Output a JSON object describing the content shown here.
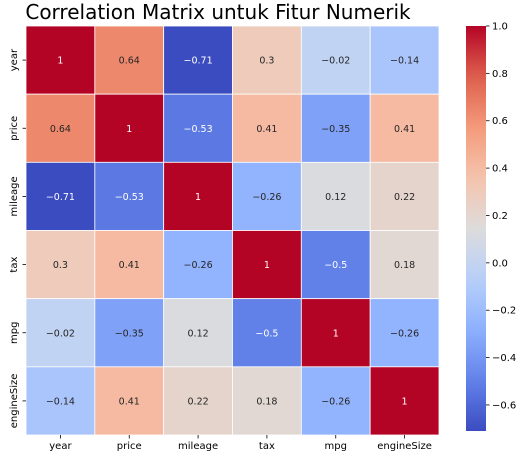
{
  "chart_data": {
    "type": "heatmap",
    "title": "Correlation Matrix untuk Fitur Numerik",
    "xlabel": "",
    "ylabel": "",
    "x_categories": [
      "year",
      "price",
      "mileage",
      "tax",
      "mpg",
      "engineSize"
    ],
    "y_categories": [
      "year",
      "price",
      "mileage",
      "tax",
      "mpg",
      "engineSize"
    ],
    "values": [
      [
        1,
        0.64,
        -0.71,
        0.3,
        -0.02,
        -0.14
      ],
      [
        0.64,
        1,
        -0.53,
        0.41,
        -0.35,
        0.41
      ],
      [
        -0.71,
        -0.53,
        1,
        -0.26,
        0.12,
        0.22
      ],
      [
        0.3,
        0.41,
        -0.26,
        1,
        -0.5,
        0.18
      ],
      [
        -0.02,
        -0.35,
        0.12,
        -0.5,
        1,
        -0.26
      ],
      [
        -0.14,
        0.41,
        0.22,
        0.18,
        -0.26,
        1
      ]
    ],
    "colorbar": {
      "min": -0.71,
      "max": 1.0,
      "ticks": [
        1.0,
        0.8,
        0.6,
        0.4,
        0.2,
        0.0,
        -0.2,
        -0.4,
        -0.6
      ],
      "tick_labels": [
        "1.0",
        "0.8",
        "0.6",
        "0.4",
        "0.2",
        "0.0",
        "−0.2",
        "−0.4",
        "−0.6"
      ]
    },
    "colormap": "coolwarm",
    "colors": {
      "low": "#3b4cc0",
      "mid": "#dddcdc",
      "high": "#b40426",
      "grid_line": "#ffffff"
    },
    "legend": "colorbar-right",
    "grid": false
  }
}
